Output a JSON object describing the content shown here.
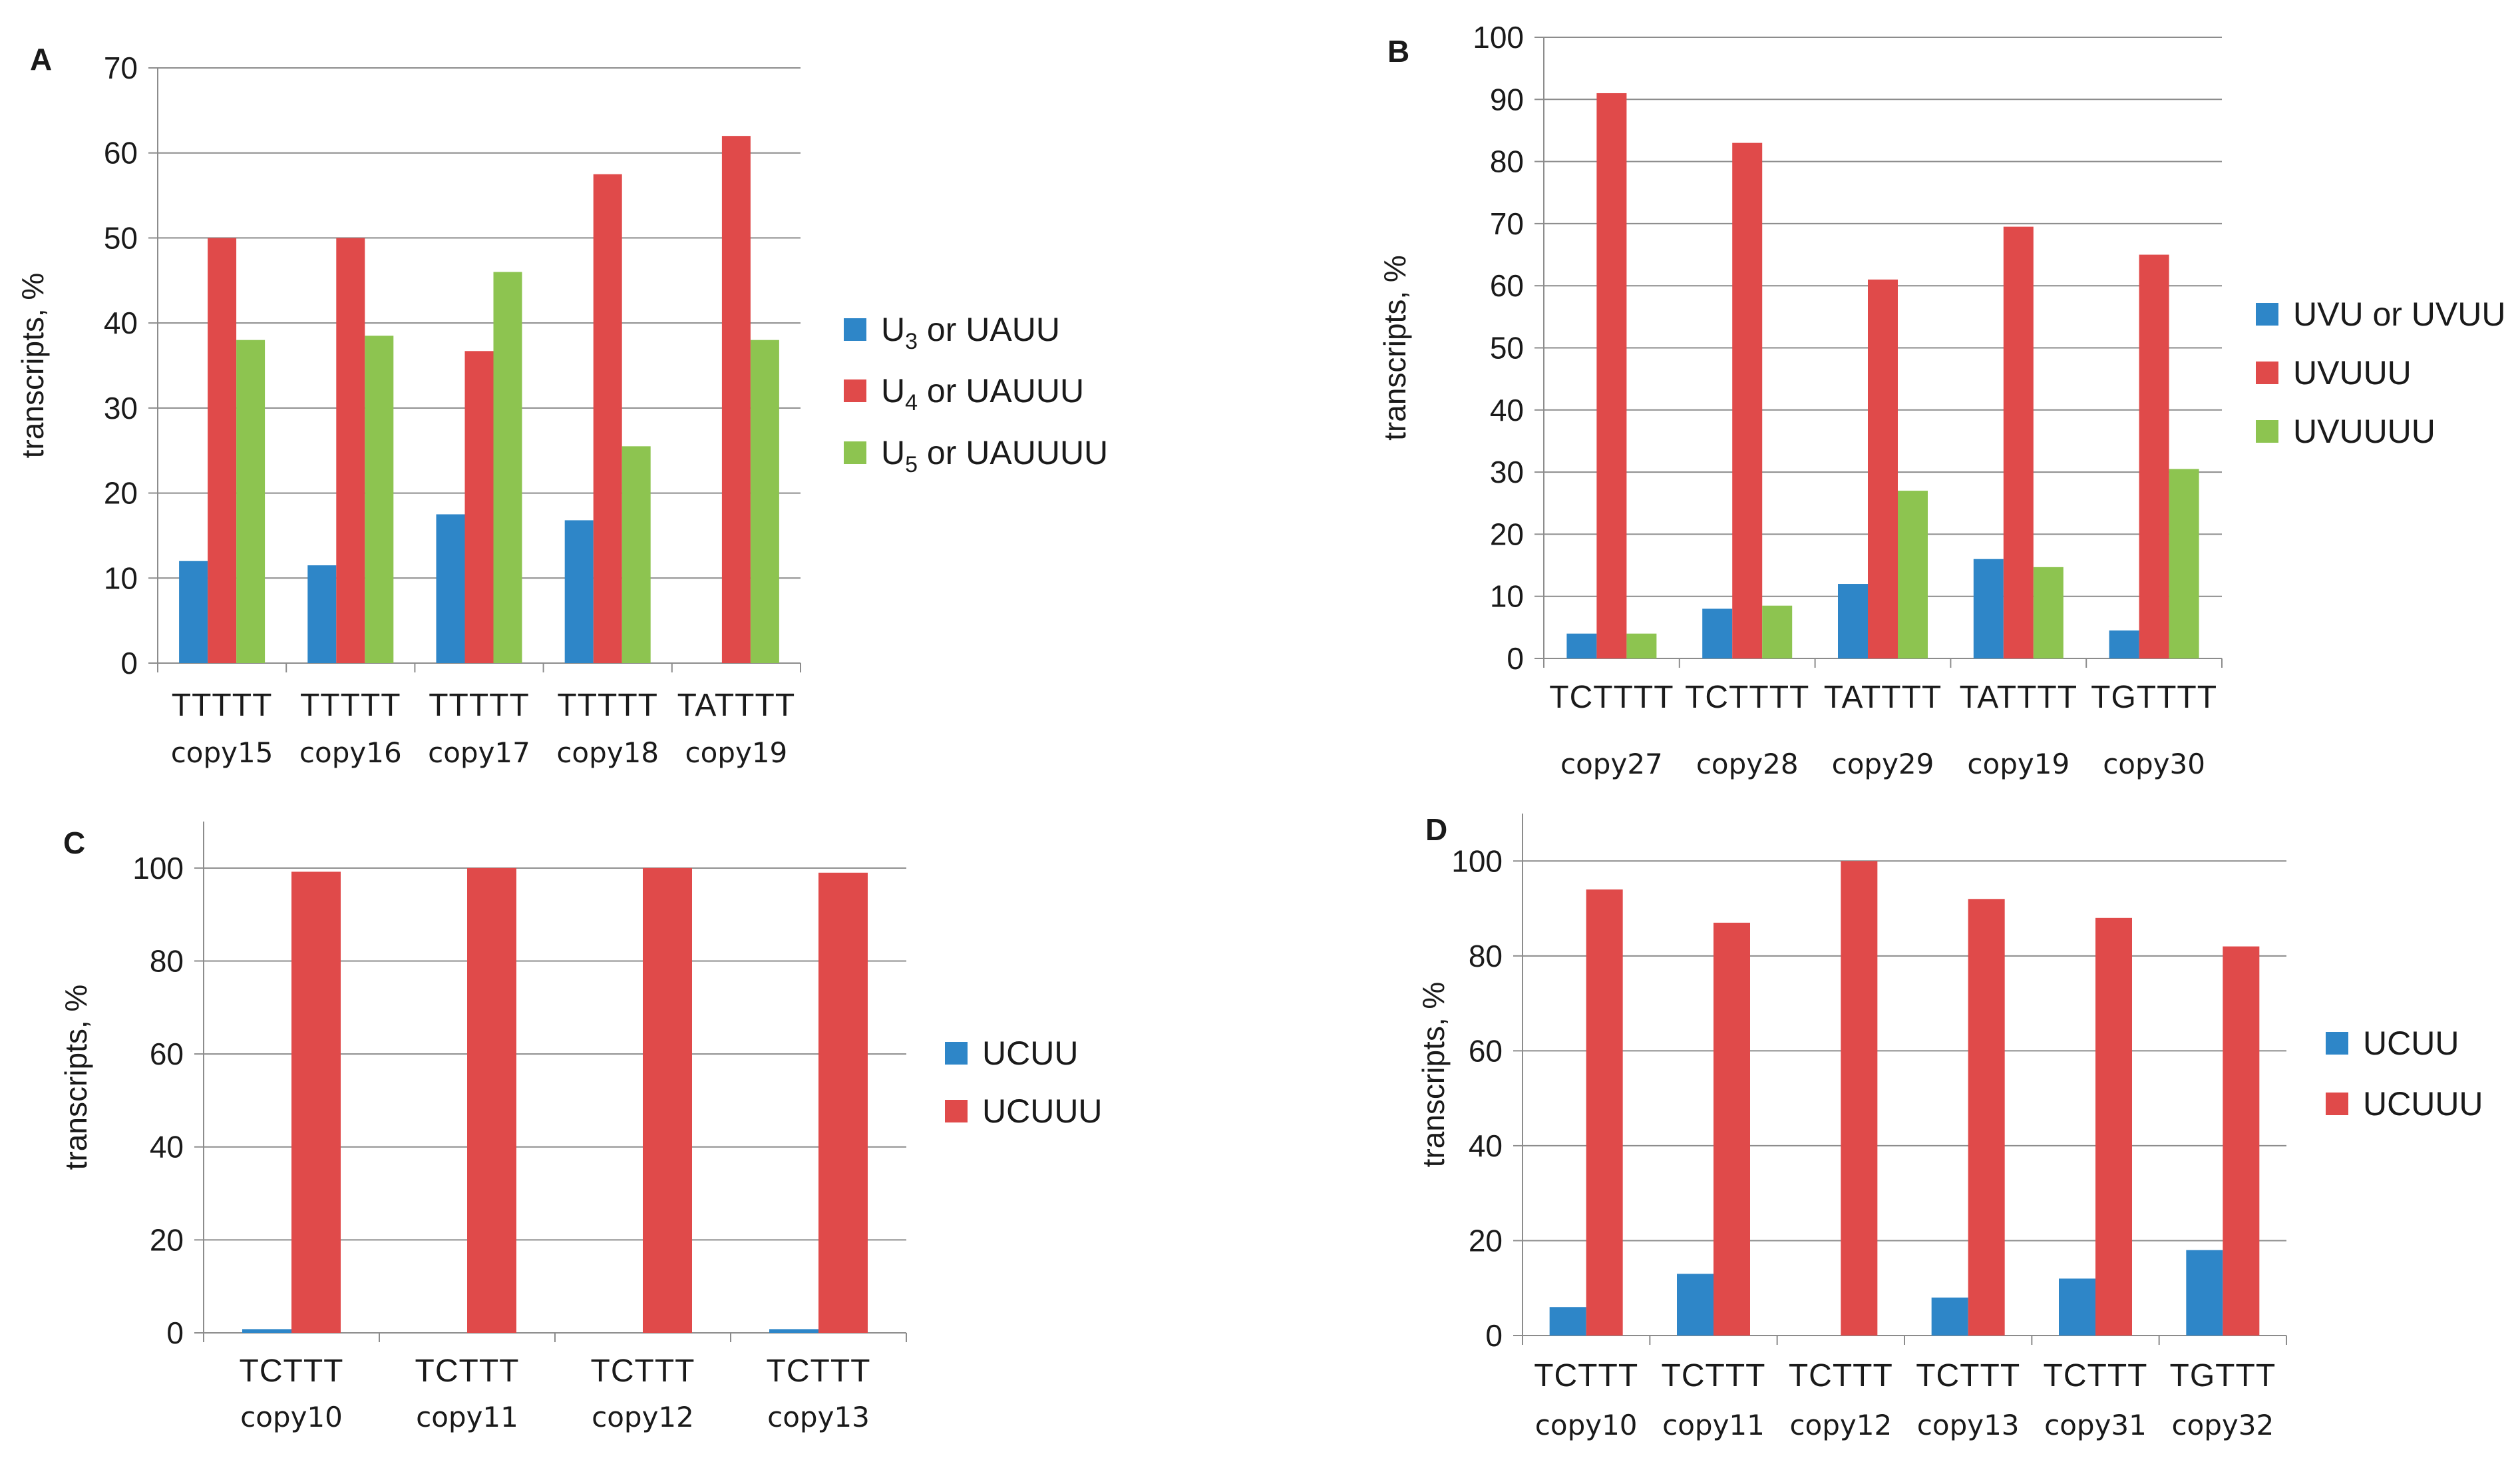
{
  "colors": {
    "blue": "#2E86C8",
    "red": "#E04A4A",
    "green": "#8DC450",
    "grid": "#8c8c8c",
    "axis": "#8c8c8c"
  },
  "chart_data": [
    {
      "panel": "A",
      "type": "bar",
      "ylabel": "transcripts, %",
      "ylim": [
        0,
        70
      ],
      "yticks": [
        0,
        10,
        20,
        30,
        40,
        50,
        60,
        70
      ],
      "categories": [
        "TTTTT",
        "TTTTT",
        "TTTTT",
        "TTTTT",
        "TATTTT"
      ],
      "subcategories": [
        "copy15",
        "copy16",
        "copy17",
        "copy18",
        "copy19"
      ],
      "legend_position": "right",
      "series": [
        {
          "name": "U3 or UAUU",
          "legend": {
            "pre": "U",
            "sub": "3",
            "post": " or UAUU"
          },
          "color": "#2E86C8",
          "values": [
            12,
            11.5,
            17.5,
            16.8,
            0
          ]
        },
        {
          "name": "U4 or UAUUU",
          "legend": {
            "pre": "U",
            "sub": "4",
            "post": " or UAUUU"
          },
          "color": "#E04A4A",
          "values": [
            50,
            50,
            36.7,
            57.5,
            62
          ]
        },
        {
          "name": "U5 or UAUUUU",
          "legend": {
            "pre": "U",
            "sub": "5",
            "post": " or UAUUUU"
          },
          "color": "#8DC450",
          "values": [
            38,
            38.5,
            46,
            25.5,
            38
          ]
        }
      ]
    },
    {
      "panel": "B",
      "type": "bar",
      "ylabel": "transcripts, %",
      "ylim": [
        0,
        100
      ],
      "yticks": [
        0,
        10,
        20,
        30,
        40,
        50,
        60,
        70,
        80,
        90,
        100
      ],
      "categories": [
        "TCTTTT",
        "TCTTTT",
        "TATTTT",
        "TATTTT",
        "TGTTTT"
      ],
      "subcategories": [
        "copy27",
        "copy28",
        "copy29",
        "copy19",
        "copy30"
      ],
      "legend_position": "right",
      "series": [
        {
          "name": "UVU or UVUU",
          "legend": {
            "pre": "UVU or UVUU",
            "sub": "",
            "post": ""
          },
          "color": "#2E86C8",
          "values": [
            4,
            8,
            12,
            16,
            4.5
          ]
        },
        {
          "name": "UVUUU",
          "legend": {
            "pre": "UVUUU",
            "sub": "",
            "post": ""
          },
          "color": "#E04A4A",
          "values": [
            91,
            83,
            61,
            69.5,
            65
          ]
        },
        {
          "name": "UVUUUU",
          "legend": {
            "pre": "UVUUUU",
            "sub": "",
            "post": ""
          },
          "color": "#8DC450",
          "values": [
            4,
            8.5,
            27,
            14.7,
            30.5
          ]
        }
      ]
    },
    {
      "panel": "C",
      "type": "bar",
      "ylabel": "transcripts, %",
      "ylim": [
        0,
        110
      ],
      "yticks": [
        0,
        20,
        40,
        60,
        80,
        100
      ],
      "categories": [
        "TCTTT",
        "TCTTT",
        "TCTTT",
        "TCTTT"
      ],
      "subcategories": [
        "copy10",
        "copy11",
        "copy12",
        "copy13"
      ],
      "legend_position": "right",
      "series": [
        {
          "name": "UCUU",
          "legend": {
            "pre": "UCUU",
            "sub": "",
            "post": ""
          },
          "color": "#2E86C8",
          "values": [
            0.8,
            0,
            0,
            0.8
          ]
        },
        {
          "name": "UCUUU",
          "legend": {
            "pre": "UCUUU",
            "sub": "",
            "post": ""
          },
          "color": "#E04A4A",
          "values": [
            99.2,
            100,
            100,
            99
          ]
        }
      ]
    },
    {
      "panel": "D",
      "type": "bar",
      "ylabel": "transcripts, %",
      "ylim": [
        0,
        110
      ],
      "yticks": [
        0,
        20,
        40,
        60,
        80,
        100
      ],
      "categories": [
        "TCTTT",
        "TCTTT",
        "TCTTT",
        "TCTTT",
        "TCTTT",
        "TGTTT"
      ],
      "subcategories": [
        "copy10",
        "copy11",
        "copy12",
        "copy13",
        "copy31",
        "copy32"
      ],
      "legend_position": "right",
      "series": [
        {
          "name": "UCUU",
          "legend": {
            "pre": "UCUU",
            "sub": "",
            "post": ""
          },
          "color": "#2E86C8",
          "values": [
            6,
            13,
            0,
            8,
            12,
            18
          ]
        },
        {
          "name": "UCUUU",
          "legend": {
            "pre": "UCUUU",
            "sub": "",
            "post": ""
          },
          "color": "#E04A4A",
          "values": [
            94,
            87,
            100,
            92,
            88,
            82
          ]
        }
      ]
    }
  ]
}
